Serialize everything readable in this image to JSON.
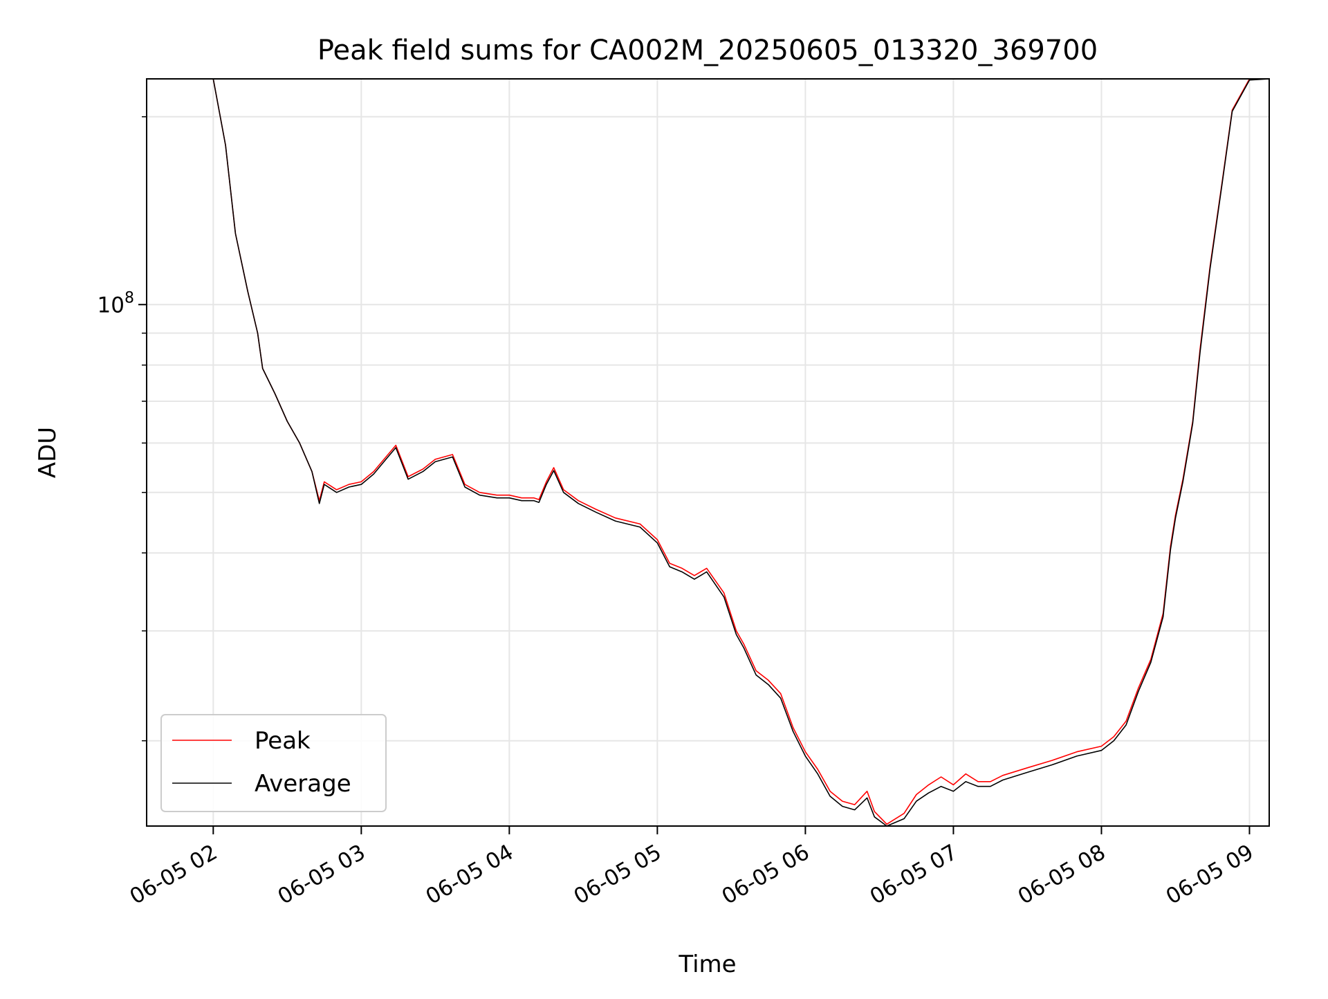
{
  "chart_data": {
    "type": "line",
    "title": "Peak field sums for CA002M_20250605_013320_369700",
    "xlabel": "Time",
    "ylabel": "ADU",
    "y_scale": "log",
    "ylim": [
      14600000,
      230000000
    ],
    "xlim": [
      "2025-06-05 01:33",
      "2025-06-05 09:08"
    ],
    "y_major_tick_labels": [
      {
        "value": 100000000,
        "base": "10",
        "exponent": "8"
      }
    ],
    "y_minor_ticks": [
      20000000,
      30000000,
      40000000,
      50000000,
      60000000,
      70000000,
      80000000,
      90000000,
      200000000
    ],
    "x_tick_labels": [
      "06-05 02",
      "06-05 03",
      "06-05 04",
      "06-05 05",
      "06-05 06",
      "06-05 07",
      "06-05 08",
      "06-05 09"
    ],
    "x_tick_times": [
      "2025-06-05 02:00",
      "2025-06-05 03:00",
      "2025-06-05 04:00",
      "2025-06-05 05:00",
      "2025-06-05 06:00",
      "2025-06-05 07:00",
      "2025-06-05 08:00",
      "2025-06-05 09:00"
    ],
    "grid": true,
    "legend_position": "lower-left",
    "series": [
      {
        "name": "Peak",
        "color": "#ff0000",
        "x": [
          "2025-06-05 01:33",
          "2025-06-05 01:48",
          "2025-06-05 02:00",
          "2025-06-05 02:05",
          "2025-06-05 02:09",
          "2025-06-05 02:14",
          "2025-06-05 02:18",
          "2025-06-05 02:20",
          "2025-06-05 02:25",
          "2025-06-05 02:30",
          "2025-06-05 02:35",
          "2025-06-05 02:40",
          "2025-06-05 02:43",
          "2025-06-05 02:45",
          "2025-06-05 02:50",
          "2025-06-05 02:55",
          "2025-06-05 03:00",
          "2025-06-05 03:05",
          "2025-06-05 03:10",
          "2025-06-05 03:14",
          "2025-06-05 03:19",
          "2025-06-05 03:25",
          "2025-06-05 03:30",
          "2025-06-05 03:37",
          "2025-06-05 03:42",
          "2025-06-05 03:48",
          "2025-06-05 03:55",
          "2025-06-05 04:00",
          "2025-06-05 04:05",
          "2025-06-05 04:10",
          "2025-06-05 04:12",
          "2025-06-05 04:15",
          "2025-06-05 04:18",
          "2025-06-05 04:22",
          "2025-06-05 04:28",
          "2025-06-05 04:35",
          "2025-06-05 04:43",
          "2025-06-05 04:53",
          "2025-06-05 05:00",
          "2025-06-05 05:05",
          "2025-06-05 05:10",
          "2025-06-05 05:15",
          "2025-06-05 05:20",
          "2025-06-05 05:27",
          "2025-06-05 05:32",
          "2025-06-05 05:35",
          "2025-06-05 05:40",
          "2025-06-05 05:45",
          "2025-06-05 05:50",
          "2025-06-05 05:55",
          "2025-06-05 06:00",
          "2025-06-05 06:05",
          "2025-06-05 06:10",
          "2025-06-05 06:15",
          "2025-06-05 06:20",
          "2025-06-05 06:25",
          "2025-06-05 06:28",
          "2025-06-05 06:33",
          "2025-06-05 06:40",
          "2025-06-05 06:45",
          "2025-06-05 06:50",
          "2025-06-05 06:55",
          "2025-06-05 07:00",
          "2025-06-05 07:05",
          "2025-06-05 07:10",
          "2025-06-05 07:15",
          "2025-06-05 07:20",
          "2025-06-05 07:30",
          "2025-06-05 07:40",
          "2025-06-05 07:50",
          "2025-06-05 08:00",
          "2025-06-05 08:05",
          "2025-06-05 08:10",
          "2025-06-05 08:15",
          "2025-06-05 08:20",
          "2025-06-05 08:25",
          "2025-06-05 08:28",
          "2025-06-05 08:30",
          "2025-06-05 08:33",
          "2025-06-05 08:37",
          "2025-06-05 08:40",
          "2025-06-05 08:44",
          "2025-06-05 08:49",
          "2025-06-05 08:53",
          "2025-06-05 09:00",
          "2025-06-05 09:08"
        ],
        "y": [
          230000000,
          230000000,
          230000000,
          180000000,
          130000000,
          105000000,
          90000000,
          79000000,
          72000000,
          65000000,
          60000000,
          54000000,
          48500000,
          52000000,
          50500000,
          51500000,
          52000000,
          54000000,
          57000000,
          59500000,
          53000000,
          54500000,
          56500000,
          57500000,
          51500000,
          50000000,
          49500000,
          49500000,
          49000000,
          49000000,
          48700000,
          52000000,
          54800000,
          50500000,
          48500000,
          47000000,
          45500000,
          44500000,
          42000000,
          38500000,
          37800000,
          36800000,
          37800000,
          34500000,
          30000000,
          28600000,
          25900000,
          25000000,
          23800000,
          21000000,
          19200000,
          18000000,
          16600000,
          16000000,
          15800000,
          16600000,
          15400000,
          14700000,
          15300000,
          16400000,
          17000000,
          17500000,
          17000000,
          17700000,
          17200000,
          17200000,
          17600000,
          18100000,
          18600000,
          19200000,
          19600000,
          20300000,
          21500000,
          24300000,
          27000000,
          32000000,
          41000000,
          46000000,
          52500000,
          65000000,
          85000000,
          115000000,
          158000000,
          205000000,
          230000000,
          230000000
        ]
      },
      {
        "name": "Average",
        "color": "#000000",
        "x": [
          "2025-06-05 01:33",
          "2025-06-05 01:48",
          "2025-06-05 02:00",
          "2025-06-05 02:05",
          "2025-06-05 02:09",
          "2025-06-05 02:14",
          "2025-06-05 02:18",
          "2025-06-05 02:20",
          "2025-06-05 02:25",
          "2025-06-05 02:30",
          "2025-06-05 02:35",
          "2025-06-05 02:40",
          "2025-06-05 02:43",
          "2025-06-05 02:45",
          "2025-06-05 02:50",
          "2025-06-05 02:55",
          "2025-06-05 03:00",
          "2025-06-05 03:05",
          "2025-06-05 03:10",
          "2025-06-05 03:14",
          "2025-06-05 03:19",
          "2025-06-05 03:25",
          "2025-06-05 03:30",
          "2025-06-05 03:37",
          "2025-06-05 03:42",
          "2025-06-05 03:48",
          "2025-06-05 03:55",
          "2025-06-05 04:00",
          "2025-06-05 04:05",
          "2025-06-05 04:10",
          "2025-06-05 04:12",
          "2025-06-05 04:15",
          "2025-06-05 04:18",
          "2025-06-05 04:22",
          "2025-06-05 04:28",
          "2025-06-05 04:35",
          "2025-06-05 04:43",
          "2025-06-05 04:53",
          "2025-06-05 05:00",
          "2025-06-05 05:05",
          "2025-06-05 05:10",
          "2025-06-05 05:15",
          "2025-06-05 05:20",
          "2025-06-05 05:27",
          "2025-06-05 05:32",
          "2025-06-05 05:35",
          "2025-06-05 05:40",
          "2025-06-05 05:45",
          "2025-06-05 05:50",
          "2025-06-05 05:55",
          "2025-06-05 06:00",
          "2025-06-05 06:05",
          "2025-06-05 06:10",
          "2025-06-05 06:15",
          "2025-06-05 06:20",
          "2025-06-05 06:25",
          "2025-06-05 06:28",
          "2025-06-05 06:33",
          "2025-06-05 06:40",
          "2025-06-05 06:45",
          "2025-06-05 06:50",
          "2025-06-05 06:55",
          "2025-06-05 07:00",
          "2025-06-05 07:05",
          "2025-06-05 07:10",
          "2025-06-05 07:15",
          "2025-06-05 07:20",
          "2025-06-05 07:30",
          "2025-06-05 07:40",
          "2025-06-05 07:50",
          "2025-06-05 08:00",
          "2025-06-05 08:05",
          "2025-06-05 08:10",
          "2025-06-05 08:15",
          "2025-06-05 08:20",
          "2025-06-05 08:25",
          "2025-06-05 08:28",
          "2025-06-05 08:30",
          "2025-06-05 08:33",
          "2025-06-05 08:37",
          "2025-06-05 08:40",
          "2025-06-05 08:44",
          "2025-06-05 08:49",
          "2025-06-05 08:53",
          "2025-06-05 09:00",
          "2025-06-05 09:08"
        ],
        "y": [
          230000000,
          230000000,
          230000000,
          180000000,
          130000000,
          105000000,
          90000000,
          79000000,
          72000000,
          65000000,
          60000000,
          54000000,
          48000000,
          51500000,
          50000000,
          51000000,
          51500000,
          53500000,
          56500000,
          59000000,
          52500000,
          54000000,
          56000000,
          57000000,
          51000000,
          49500000,
          49000000,
          49000000,
          48500000,
          48500000,
          48200000,
          51500000,
          54200000,
          50000000,
          48000000,
          46500000,
          45000000,
          44000000,
          41500000,
          38000000,
          37300000,
          36300000,
          37300000,
          34000000,
          29600000,
          28200000,
          25500000,
          24600000,
          23400000,
          20700000,
          18900000,
          17700000,
          16300000,
          15700000,
          15500000,
          16200000,
          15100000,
          14600000,
          15000000,
          16000000,
          16500000,
          16900000,
          16600000,
          17200000,
          16900000,
          16900000,
          17300000,
          17800000,
          18300000,
          18900000,
          19300000,
          20000000,
          21200000,
          24000000,
          26700000,
          31600000,
          40500000,
          45500000,
          52000000,
          64500000,
          84000000,
          114000000,
          157000000,
          204000000,
          229000000,
          230000000
        ]
      }
    ]
  }
}
